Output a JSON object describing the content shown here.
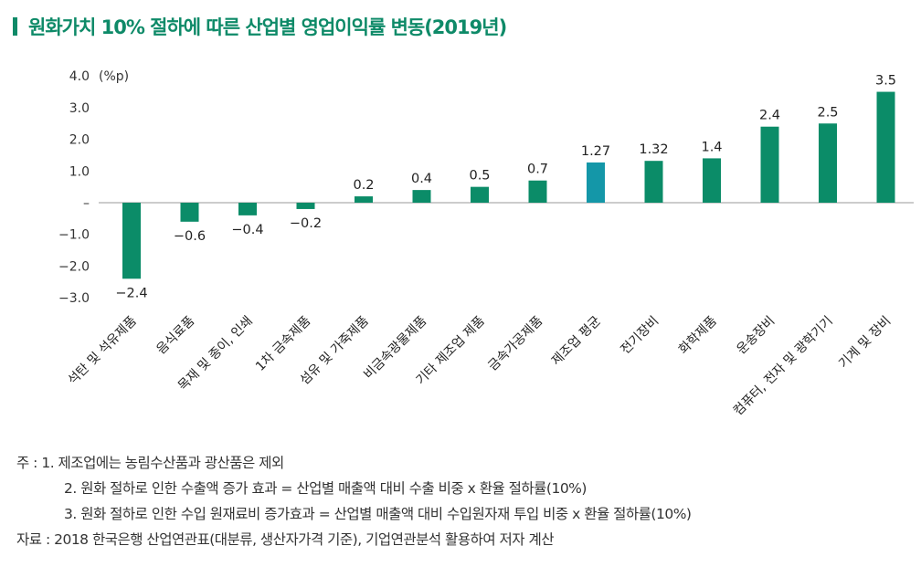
{
  "title": "원화가치 10% 절하에 따른 산업별 영업이익률 변동(2019년)",
  "chart_data": {
    "type": "bar",
    "title": "원화가치 10% 절하에 따른 산업별 영업이익률 변동(2019년)",
    "ylabel": "(%p)",
    "ylim": [
      -3.0,
      4.0
    ],
    "yticks": [
      4.0,
      3.0,
      2.0,
      1.0,
      0,
      -1.0,
      -2.0,
      -3.0
    ],
    "ytick_labels": [
      "4.0",
      "3.0",
      "2.0",
      "1.0",
      "–",
      "−1.0",
      "−2.0",
      "−3.0"
    ],
    "categories": [
      "석탄 및 석유제품",
      "음식료품",
      "목재 및 종이, 인쇄",
      "1차 금속제품",
      "섬유 및 가죽제품",
      "비금속광물제품",
      "기타 제조업 제품",
      "금속가공제품",
      "제조업 평균",
      "전기장비",
      "화학제품",
      "운송장비",
      "컴퓨터, 전자 및 광학기기",
      "기계 및 장비"
    ],
    "values": [
      -2.4,
      -0.6,
      -0.4,
      -0.2,
      0.2,
      0.4,
      0.5,
      0.7,
      1.27,
      1.32,
      1.4,
      2.4,
      2.5,
      3.5
    ],
    "data_labels": [
      "−2.4",
      "−0.6",
      "−0.4",
      "−0.2",
      "0.2",
      "0.4",
      "0.5",
      "0.7",
      "1.27",
      "1.32",
      "1.4",
      "2.4",
      "2.5",
      "3.5"
    ],
    "colors": {
      "default": "#0b8c68",
      "highlight": "#1497a8",
      "title": "#0e8a68"
    },
    "highlight_category": "제조업 평균",
    "grid": false
  },
  "notes": [
    "주 : 1. 제조업에는 농림수산품과 광산품은 제외",
    "2. 원화 절하로 인한 수출액 증가 효과 = 산업별 매출액 대비 수출 비중 x 환율 절하률(10%)",
    "3. 원화 절하로 인한 수입 원재료비 증가효과 = 산업별 매출액 대비 수입원자재 투입 비중 x 환율 절하률(10%)"
  ],
  "source": "자료 : 2018 한국은행 산업연관표(대분류, 생산자가격 기준), 기업연관분석 활용하여 저자 계산"
}
